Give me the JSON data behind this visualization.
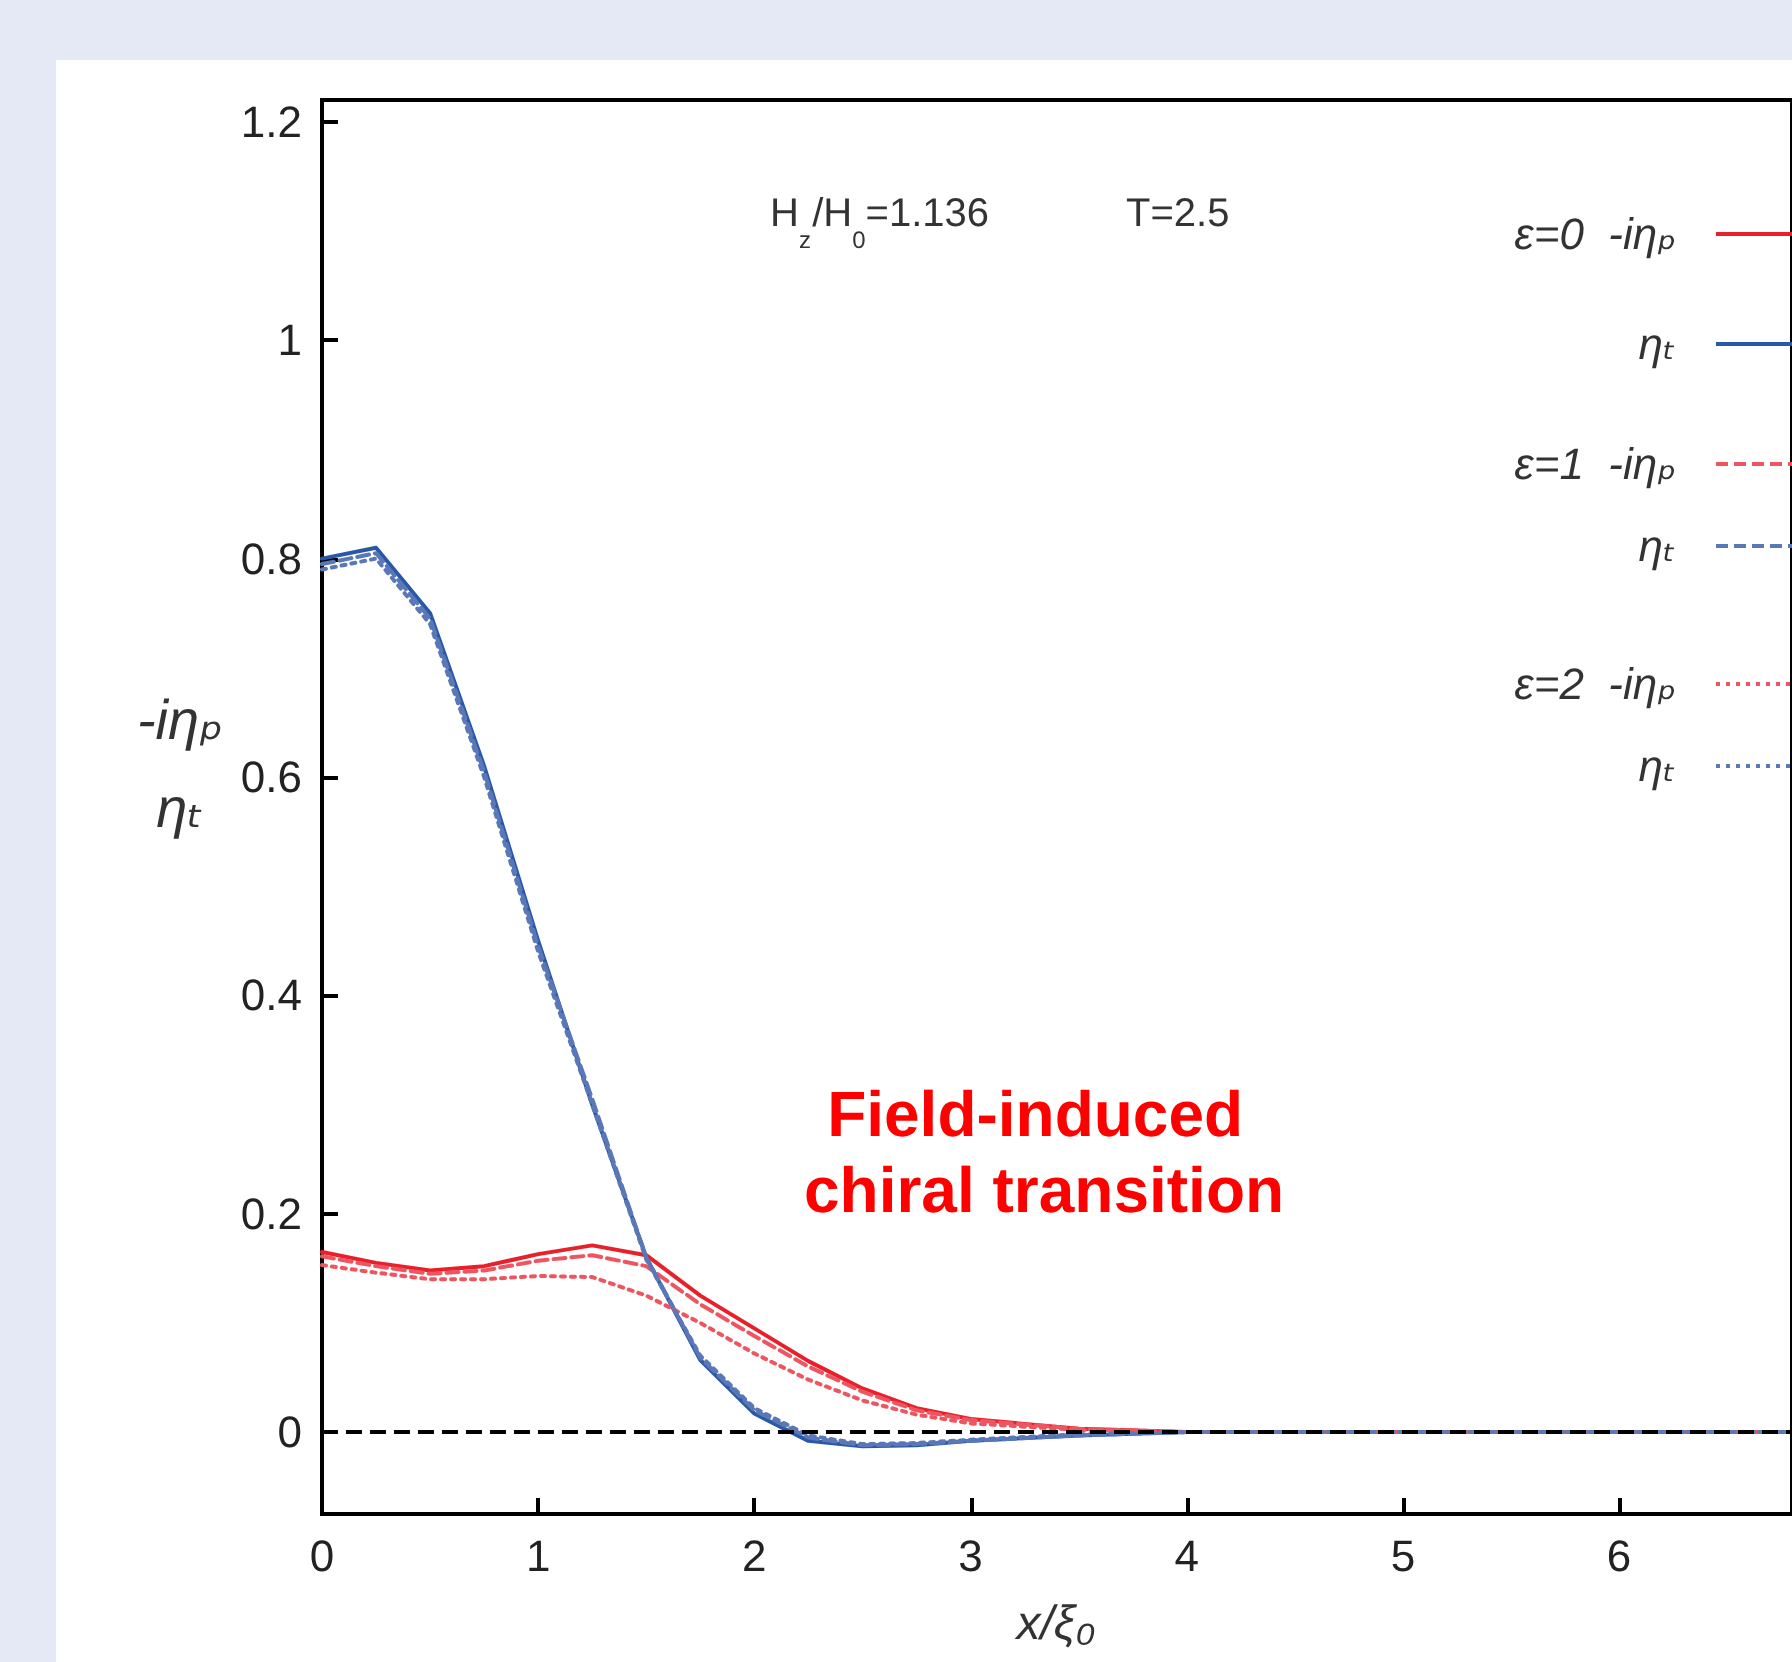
{
  "chart_data": {
    "type": "line",
    "xlabel": "x/ξ₀",
    "ylabel": "-iηₚ\nηₜ",
    "annotations": [
      "H$_{z}$/H$_{0}$=1.136",
      "T=2.5",
      "Field-induced chiral transition"
    ],
    "x": [
      0,
      0.25,
      0.5,
      0.75,
      1,
      1.25,
      1.5,
      1.75,
      2,
      2.25,
      2.5,
      2.75,
      3,
      3.5,
      4,
      5,
      6,
      6.8
    ],
    "series": [
      {
        "name": "ε=0  -iηₚ",
        "color": "#e8202a",
        "line_style": "solid",
        "values": [
          0.165,
          0.155,
          0.148,
          0.152,
          0.163,
          0.171,
          0.162,
          0.125,
          0.095,
          0.065,
          0.04,
          0.022,
          0.012,
          0.003,
          0,
          0,
          0,
          0
        ]
      },
      {
        "name": "ηₜ",
        "color": "#2a58a8",
        "line_style": "solid",
        "values": [
          0.8,
          0.81,
          0.75,
          0.61,
          0.45,
          0.3,
          0.16,
          0.066,
          0.017,
          -0.008,
          -0.013,
          -0.012,
          -0.008,
          -0.003,
          0,
          0,
          0,
          0
        ]
      },
      {
        "name": "ε=1  -iηₚ",
        "color": "#ee5560",
        "line_style": "dashed",
        "values": [
          0.161,
          0.152,
          0.145,
          0.148,
          0.157,
          0.162,
          0.152,
          0.117,
          0.088,
          0.06,
          0.037,
          0.02,
          0.011,
          0.003,
          0,
          0,
          0,
          0
        ]
      },
      {
        "name": "ηₜ",
        "color": "#5a78b8",
        "line_style": "dashed",
        "values": [
          0.795,
          0.805,
          0.745,
          0.605,
          0.445,
          0.305,
          0.16,
          0.068,
          0.02,
          -0.005,
          -0.012,
          -0.011,
          -0.008,
          -0.003,
          0,
          0,
          0,
          0
        ]
      },
      {
        "name": "ε=2  -iηₚ",
        "color": "#ee5560",
        "line_style": "dotted",
        "values": [
          0.153,
          0.146,
          0.14,
          0.14,
          0.143,
          0.142,
          0.125,
          0.1,
          0.072,
          0.048,
          0.029,
          0.016,
          0.008,
          0.002,
          0,
          0,
          0,
          0
        ]
      },
      {
        "name": "ηₜ",
        "color": "#5a78b8",
        "line_style": "dotted",
        "values": [
          0.79,
          0.8,
          0.74,
          0.6,
          0.44,
          0.3,
          0.158,
          0.07,
          0.022,
          -0.003,
          -0.011,
          -0.01,
          -0.007,
          -0.002,
          0,
          0,
          0,
          0
        ]
      }
    ],
    "xlim": [
      0,
      6.8
    ],
    "xticks": [
      0,
      1,
      2,
      3,
      4,
      5,
      6
    ],
    "ylim": [
      -0.075,
      1.22
    ],
    "yticks": [
      0,
      0.2,
      0.4,
      0.6,
      0.8,
      1,
      1.2
    ],
    "ref_lines": [
      {
        "axis": "y",
        "value": 0,
        "color": "#000000",
        "line_style": "dashed"
      }
    ],
    "grid": false,
    "legend": "top right",
    "marker": "none"
  }
}
